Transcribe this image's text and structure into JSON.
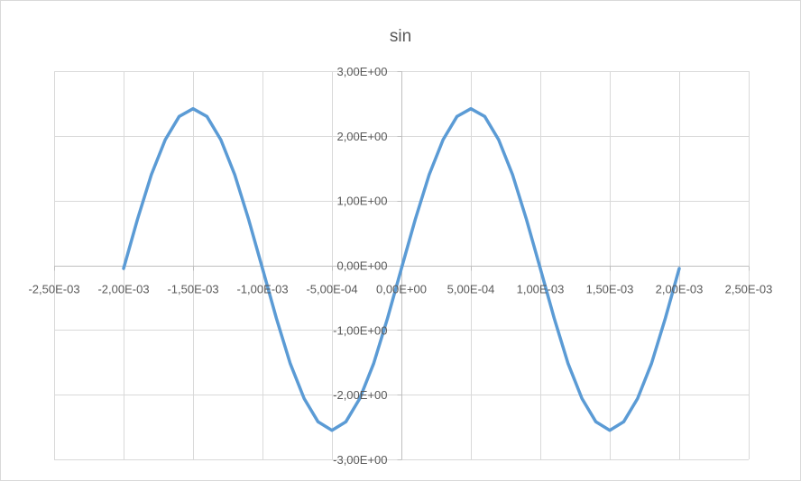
{
  "chart_data": {
    "type": "line",
    "title": "sin",
    "xlabel": "",
    "ylabel": "",
    "xlim": [
      -0.0025,
      0.0025
    ],
    "ylim": [
      -3,
      3
    ],
    "x_ticks": [
      -0.0025,
      -0.002,
      -0.0015,
      -0.001,
      -0.0005,
      0,
      0.0005,
      0.001,
      0.0015,
      0.002,
      0.0025
    ],
    "x_tick_labels": [
      "-2,50E-03",
      "-2,00E-03",
      "-1,50E-03",
      "-1,00E-03",
      "-5,00E-04",
      "0,00E+00",
      "5,00E-04",
      "1,00E-03",
      "1,50E-03",
      "2,00E-03",
      "2,50E-03"
    ],
    "y_ticks": [
      3,
      2,
      1,
      0,
      -1,
      -2,
      -3
    ],
    "y_tick_labels": [
      "3,00E+00",
      "2,00E+00",
      "1,00E+00",
      "0,00E+00",
      "-1,00E+00",
      "-2,00E+00",
      "-3,00E+00"
    ],
    "grid": true,
    "legend": "none",
    "series": [
      {
        "color": "#5b9bd5",
        "x": [
          -0.002,
          -0.0019,
          -0.0018,
          -0.0017,
          -0.0016,
          -0.0015,
          -0.0014,
          -0.0013,
          -0.0012,
          -0.0011,
          -0.001,
          -0.0009,
          -0.0008,
          -0.0007,
          -0.0006,
          -0.0005,
          -0.0004,
          -0.0003,
          -0.0002,
          -0.0001,
          0,
          0.0001,
          0.0002,
          0.0003,
          0.0004,
          0.0005,
          0.0006,
          0.0007,
          0.0008,
          0.0009,
          0.001,
          0.0011,
          0.0012,
          0.0013,
          0.0014,
          0.0015,
          0.0016,
          0.0017,
          0.0018,
          0.0019,
          0.002
        ],
        "y": [
          -0.05,
          0.71,
          1.4,
          1.94,
          2.3,
          2.42,
          2.3,
          1.94,
          1.4,
          0.71,
          -0.05,
          -0.82,
          -1.52,
          -2.06,
          -2.42,
          -2.55,
          -2.42,
          -2.06,
          -1.52,
          -0.82,
          -0.05,
          0.71,
          1.4,
          1.94,
          2.3,
          2.42,
          2.3,
          1.94,
          1.4,
          0.71,
          -0.05,
          -0.82,
          -1.52,
          -2.06,
          -2.42,
          -2.55,
          -2.42,
          -2.06,
          -1.52,
          -0.82,
          -0.05
        ]
      }
    ]
  }
}
